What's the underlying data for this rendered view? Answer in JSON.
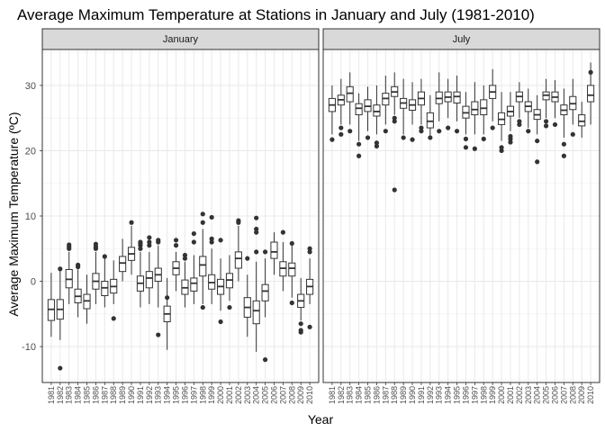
{
  "chart_data": {
    "type": "boxplot",
    "title": "Average Maximum Temperature at Stations in January and July (1981-2010)",
    "xlabel": "Year",
    "ylabel": "Average Maximum Temperature (ºC)",
    "ylim": [
      -15.5,
      35.5
    ],
    "yticks": [
      -10,
      0,
      10,
      20,
      30
    ],
    "grid": true,
    "x": [
      "1981",
      "1982",
      "1983",
      "1984",
      "1985",
      "1986",
      "1987",
      "1988",
      "1989",
      "1990",
      "1991",
      "1992",
      "1993",
      "1994",
      "1995",
      "1996",
      "1997",
      "1998",
      "1999",
      "2000",
      "2001",
      "2002",
      "2003",
      "2004",
      "2005",
      "2006",
      "2007",
      "2008",
      "2009",
      "2010"
    ],
    "panels": [
      {
        "label": "January",
        "boxes": [
          {
            "low": -8.5,
            "q1": -6.0,
            "median": -4.3,
            "q3": -2.8,
            "high": 1.3,
            "outliers": []
          },
          {
            "low": -9.0,
            "q1": -5.8,
            "median": -4.3,
            "q3": -2.8,
            "high": 1.8,
            "outliers": [
              -13.3,
              1.9
            ]
          },
          {
            "low": -3.5,
            "q1": -1.0,
            "median": 0.3,
            "q3": 1.8,
            "high": 4.5,
            "outliers": [
              5.0,
              5.3,
              5.6
            ]
          },
          {
            "low": -5.5,
            "q1": -3.3,
            "median": -2.3,
            "q3": -1.2,
            "high": 1.8,
            "outliers": [
              2.2,
              2.5
            ]
          },
          {
            "low": -6.5,
            "q1": -4.2,
            "median": -3.0,
            "q3": -2.0,
            "high": 1.0,
            "outliers": []
          },
          {
            "low": -3.5,
            "q1": -1.2,
            "median": 0.0,
            "q3": 1.2,
            "high": 4.5,
            "outliers": [
              5.0,
              5.3,
              5.7
            ]
          },
          {
            "low": -4.0,
            "q1": -2.2,
            "median": -1.0,
            "q3": 0.0,
            "high": 3.5,
            "outliers": [
              3.8
            ]
          },
          {
            "low": -3.5,
            "q1": -1.8,
            "median": -0.8,
            "q3": 0.3,
            "high": 3.2,
            "outliers": [
              -5.7
            ]
          },
          {
            "low": 0.0,
            "q1": 1.5,
            "median": 2.8,
            "q3": 3.8,
            "high": 6.5,
            "outliers": []
          },
          {
            "low": 1.0,
            "q1": 3.2,
            "median": 4.2,
            "q3": 5.2,
            "high": 8.5,
            "outliers": [
              9.0
            ]
          },
          {
            "low": -4.0,
            "q1": -1.5,
            "median": -0.3,
            "q3": 0.8,
            "high": 4.5,
            "outliers": [
              5.0,
              5.5,
              5.8,
              6.0
            ]
          },
          {
            "low": -3.5,
            "q1": -1.0,
            "median": 0.5,
            "q3": 1.5,
            "high": 4.5,
            "outliers": [
              5.5,
              6.0,
              6.7
            ]
          },
          {
            "low": -4.0,
            "q1": 0.0,
            "median": 1.0,
            "q3": 2.0,
            "high": 5.5,
            "outliers": [
              -8.2,
              6.0,
              6.3
            ]
          },
          {
            "low": -10.5,
            "q1": -6.2,
            "median": -5.0,
            "q3": -3.8,
            "high": 0.5,
            "outliers": [
              -2.5
            ]
          },
          {
            "low": -1.5,
            "q1": 1.0,
            "median": 2.0,
            "q3": 3.0,
            "high": 4.5,
            "outliers": [
              5.5,
              6.3
            ]
          },
          {
            "low": -4.0,
            "q1": -2.0,
            "median": -1.0,
            "q3": 0.2,
            "high": 3.0,
            "outliers": [
              3.5,
              4.0
            ]
          },
          {
            "low": -3.5,
            "q1": -1.5,
            "median": -0.3,
            "q3": 0.5,
            "high": 4.0,
            "outliers": [
              6.0,
              7.3
            ]
          },
          {
            "low": -3.5,
            "q1": 0.8,
            "median": 2.5,
            "q3": 3.8,
            "high": 8.0,
            "outliers": [
              -4.0,
              9.0,
              10.3
            ]
          },
          {
            "low": -3.5,
            "q1": -1.2,
            "median": -0.2,
            "q3": 1.0,
            "high": 5.0,
            "outliers": [
              6.0,
              6.5,
              9.8
            ]
          },
          {
            "low": -4.5,
            "q1": -2.0,
            "median": -0.8,
            "q3": 0.3,
            "high": 3.5,
            "outliers": [
              -6.2,
              6.3
            ]
          },
          {
            "low": -3.0,
            "q1": -1.0,
            "median": 0.2,
            "q3": 1.2,
            "high": 4.0,
            "outliers": [
              -4.0
            ]
          },
          {
            "low": 0.0,
            "q1": 2.0,
            "median": 3.5,
            "q3": 4.5,
            "high": 8.5,
            "outliers": [
              9.0,
              9.3
            ]
          },
          {
            "low": -8.5,
            "q1": -5.5,
            "median": -4.0,
            "q3": -2.5,
            "high": 1.0,
            "outliers": [
              3.5
            ]
          },
          {
            "low": -10.8,
            "q1": -6.5,
            "median": -4.5,
            "q3": -3.0,
            "high": 3.0,
            "outliers": [
              4.5,
              7.5,
              8.0,
              9.7
            ]
          },
          {
            "low": -5.5,
            "q1": -3.0,
            "median": -1.5,
            "q3": -0.5,
            "high": 3.5,
            "outliers": [
              -12.0,
              4.5
            ]
          },
          {
            "low": 1.0,
            "q1": 3.5,
            "median": 4.5,
            "q3": 6.0,
            "high": 7.5,
            "outliers": []
          },
          {
            "low": -1.5,
            "q1": 0.8,
            "median": 2.0,
            "q3": 3.0,
            "high": 6.0,
            "outliers": [
              7.5
            ]
          },
          {
            "low": -2.5,
            "q1": 0.8,
            "median": 2.0,
            "q3": 2.8,
            "high": 5.5,
            "outliers": [
              -3.3,
              5.8
            ]
          },
          {
            "low": -6.0,
            "q1": -4.0,
            "median": -3.0,
            "q3": -2.0,
            "high": 0.5,
            "outliers": [
              -6.5,
              -7.5,
              -7.8
            ]
          },
          {
            "low": -3.5,
            "q1": -2.0,
            "median": -0.8,
            "q3": 0.3,
            "high": 3.5,
            "outliers": [
              -7.0,
              4.5,
              5.0
            ]
          }
        ]
      },
      {
        "label": "July",
        "boxes": [
          {
            "low": 22.5,
            "q1": 26.0,
            "median": 27.0,
            "q3": 28.0,
            "high": 30.0,
            "outliers": [
              21.7
            ]
          },
          {
            "low": 24.0,
            "q1": 27.0,
            "median": 27.8,
            "q3": 28.5,
            "high": 31.0,
            "outliers": [
              22.5,
              23.5
            ]
          },
          {
            "low": 24.0,
            "q1": 27.5,
            "median": 28.8,
            "q3": 29.8,
            "high": 32.0,
            "outliers": [
              23.0
            ]
          },
          {
            "low": 21.5,
            "q1": 25.5,
            "median": 26.5,
            "q3": 27.2,
            "high": 28.8,
            "outliers": [
              19.2,
              21.0
            ]
          },
          {
            "low": 23.0,
            "q1": 26.0,
            "median": 26.8,
            "q3": 27.8,
            "high": 29.8,
            "outliers": [
              22.0
            ]
          },
          {
            "low": 22.5,
            "q1": 25.3,
            "median": 26.0,
            "q3": 27.0,
            "high": 30.0,
            "outliers": [
              20.7,
              21.2
            ]
          },
          {
            "low": 24.0,
            "q1": 27.0,
            "median": 28.0,
            "q3": 28.8,
            "high": 31.5,
            "outliers": [
              23.0
            ]
          },
          {
            "low": 25.5,
            "q1": 28.3,
            "median": 29.0,
            "q3": 29.8,
            "high": 32.0,
            "outliers": [
              14.0,
              24.5,
              25.0
            ]
          },
          {
            "low": 22.5,
            "q1": 26.5,
            "median": 27.3,
            "q3": 28.0,
            "high": 31.0,
            "outliers": [
              22.0
            ]
          },
          {
            "low": 24.0,
            "q1": 26.2,
            "median": 27.0,
            "q3": 27.8,
            "high": 30.5,
            "outliers": [
              21.7
            ]
          },
          {
            "low": 24.0,
            "q1": 27.0,
            "median": 28.0,
            "q3": 29.0,
            "high": 31.0,
            "outliers": [
              23.0,
              23.5
            ]
          },
          {
            "low": 22.0,
            "q1": 23.5,
            "median": 24.5,
            "q3": 25.8,
            "high": 28.5,
            "outliers": [
              22.0
            ]
          },
          {
            "low": 24.5,
            "q1": 27.2,
            "median": 28.0,
            "q3": 29.0,
            "high": 32.0,
            "outliers": [
              23.0
            ]
          },
          {
            "low": 25.0,
            "q1": 27.5,
            "median": 28.2,
            "q3": 29.0,
            "high": 31.0,
            "outliers": [
              23.5
            ]
          },
          {
            "low": 24.5,
            "q1": 27.3,
            "median": 28.3,
            "q3": 29.0,
            "high": 31.5,
            "outliers": [
              23.0
            ]
          },
          {
            "low": 22.5,
            "q1": 25.0,
            "median": 25.8,
            "q3": 26.8,
            "high": 29.0,
            "outliers": [
              20.5,
              21.8
            ]
          },
          {
            "low": 22.5,
            "q1": 25.5,
            "median": 26.3,
            "q3": 27.5,
            "high": 30.5,
            "outliers": [
              20.3
            ]
          },
          {
            "low": 22.5,
            "q1": 25.5,
            "median": 26.5,
            "q3": 27.8,
            "high": 30.0,
            "outliers": [
              21.8
            ]
          },
          {
            "low": 24.5,
            "q1": 28.0,
            "median": 29.0,
            "q3": 30.0,
            "high": 32.5,
            "outliers": [
              23.5
            ]
          },
          {
            "low": 21.5,
            "q1": 24.0,
            "median": 24.8,
            "q3": 25.8,
            "high": 29.0,
            "outliers": [
              20.0,
              20.5
            ]
          },
          {
            "low": 23.0,
            "q1": 25.3,
            "median": 26.0,
            "q3": 26.8,
            "high": 29.0,
            "outliers": [
              21.3,
              21.8,
              22.2
            ]
          },
          {
            "low": 25.0,
            "q1": 27.5,
            "median": 28.3,
            "q3": 29.0,
            "high": 30.5,
            "outliers": [
              24.0,
              24.5
            ]
          },
          {
            "low": 23.5,
            "q1": 26.0,
            "median": 26.8,
            "q3": 27.5,
            "high": 29.5,
            "outliers": [
              23.0
            ]
          },
          {
            "low": 22.5,
            "q1": 24.8,
            "median": 25.5,
            "q3": 26.3,
            "high": 28.5,
            "outliers": [
              18.3,
              21.5
            ]
          },
          {
            "low": 25.0,
            "q1": 27.8,
            "median": 28.5,
            "q3": 29.0,
            "high": 31.0,
            "outliers": [
              23.8,
              24.5
            ]
          },
          {
            "low": 25.0,
            "q1": 27.5,
            "median": 28.2,
            "q3": 29.0,
            "high": 30.8,
            "outliers": [
              24.0
            ]
          },
          {
            "low": 22.0,
            "q1": 25.5,
            "median": 26.2,
            "q3": 27.0,
            "high": 29.5,
            "outliers": [
              19.2,
              21.0
            ]
          },
          {
            "low": 24.0,
            "q1": 26.3,
            "median": 27.2,
            "q3": 28.3,
            "high": 31.0,
            "outliers": [
              22.5
            ]
          },
          {
            "low": 22.0,
            "q1": 23.8,
            "median": 24.5,
            "q3": 25.5,
            "high": 27.5,
            "outliers": []
          },
          {
            "low": 24.0,
            "q1": 27.5,
            "median": 28.5,
            "q3": 30.0,
            "high": 33.5,
            "outliers": [
              32.0
            ]
          }
        ]
      }
    ]
  }
}
